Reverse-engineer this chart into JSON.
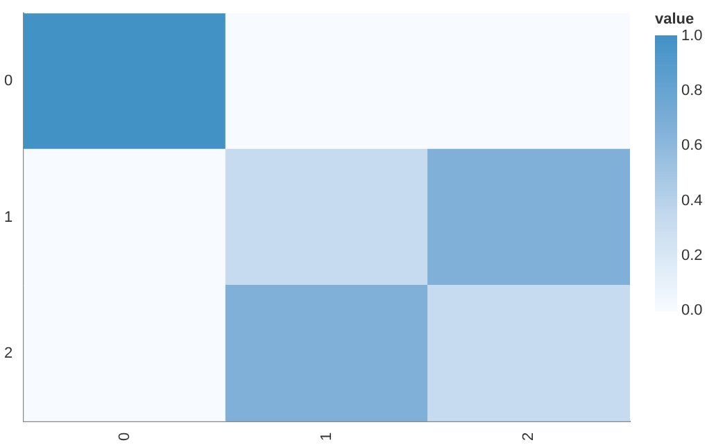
{
  "chart_data": {
    "type": "heatmap",
    "categories": [
      "0",
      "1",
      "2"
    ],
    "y_categories": [
      "0",
      "1",
      "2"
    ],
    "cells": [
      [
        1,
        0,
        0
      ],
      [
        0,
        0.33,
        0.67
      ],
      [
        0,
        0.67,
        0.33
      ]
    ],
    "clabel": "value",
    "clim": [
      0,
      1
    ],
    "cticks": [
      {
        "value": 0,
        "label": "0.0"
      },
      {
        "value": 0.2,
        "label": "0.2"
      },
      {
        "value": 0.4,
        "label": "0.4"
      },
      {
        "value": 0.6,
        "label": "0.6"
      },
      {
        "value": 0.8,
        "label": "0.8"
      },
      {
        "value": 1,
        "label": "1.0"
      }
    ]
  }
}
